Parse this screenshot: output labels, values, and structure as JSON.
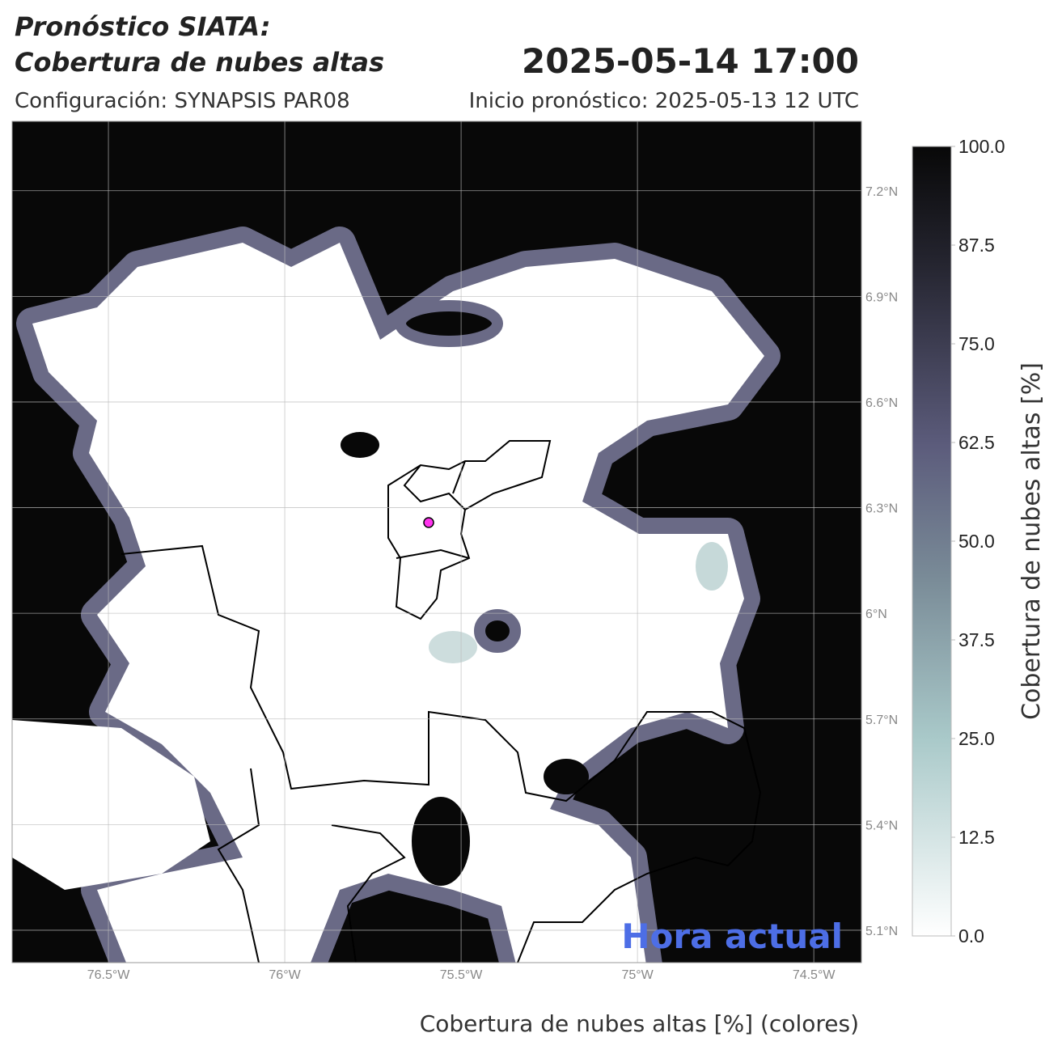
{
  "header": {
    "title_line1": "Pronóstico SIATA:",
    "title_line2": "Cobertura de nubes altas",
    "datetime": "2025-05-14 17:00",
    "config": "Configuración: SYNAPSIS PAR08",
    "init": "Inicio pronóstico: 2025-05-13 12 UTC"
  },
  "map": {
    "xlim": [
      -76.773,
      -74.365
    ],
    "ylim": [
      5.008,
      7.397
    ],
    "xticks": [
      {
        "value": -76.5,
        "label": "76.5°W"
      },
      {
        "value": -76,
        "label": "76°W"
      },
      {
        "value": -75.5,
        "label": "75.5°W"
      },
      {
        "value": -75,
        "label": "75°W"
      },
      {
        "value": -74.5,
        "label": "74.5°W"
      }
    ],
    "yticks": [
      {
        "value": 5.1,
        "label": "5.1°N"
      },
      {
        "value": 5.4,
        "label": "5.4°N"
      },
      {
        "value": 5.7,
        "label": "5.7°N"
      },
      {
        "value": 6,
        "label": "6°N"
      },
      {
        "value": 6.3,
        "label": "6.3°N"
      },
      {
        "value": 6.6,
        "label": "6.6°N"
      },
      {
        "value": 6.9,
        "label": "6.9°N"
      },
      {
        "value": 7.2,
        "label": "7.2°N"
      }
    ],
    "grid": true,
    "annotation": "Hora actual",
    "xlabel": "Cobertura de nubes altas [%] (colores)"
  },
  "colorbar": {
    "label": "Cobertura de nubes altas [%]",
    "lim": [
      0,
      100
    ],
    "ticks": [
      {
        "value": 0,
        "label": "0.0"
      },
      {
        "value": 12.5,
        "label": "12.5"
      },
      {
        "value": 25,
        "label": "25.0"
      },
      {
        "value": 37.5,
        "label": "37.5"
      },
      {
        "value": 50,
        "label": "50.0"
      },
      {
        "value": 62.5,
        "label": "62.5"
      },
      {
        "value": 75,
        "label": "75.0"
      },
      {
        "value": 87.5,
        "label": "87.5"
      },
      {
        "value": 100,
        "label": "100.0"
      }
    ]
  }
}
